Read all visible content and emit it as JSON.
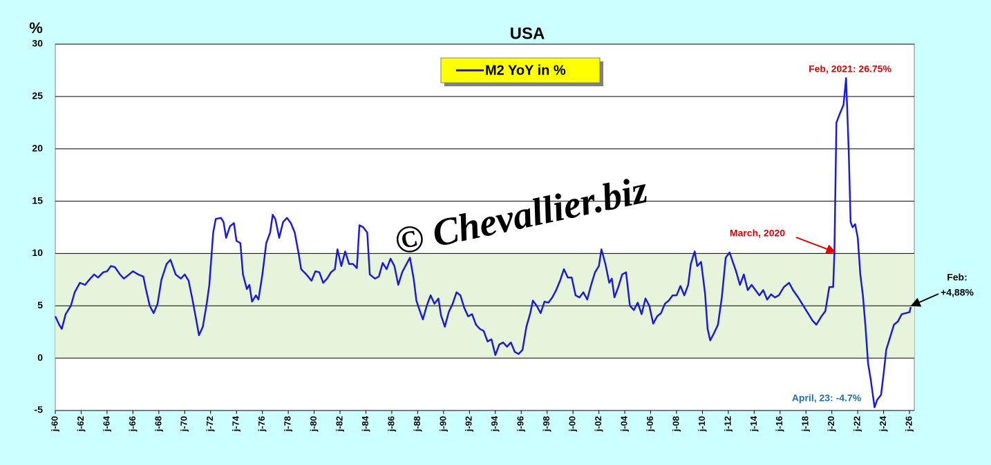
{
  "chart_data": {
    "type": "line",
    "title": "USA",
    "y_unit": "%",
    "watermark": "© Chevallier.biz",
    "x": [
      1960.0,
      1960.3,
      1960.5,
      1960.8,
      1961.2,
      1961.5,
      1961.9,
      1962.3,
      1962.7,
      1963.0,
      1963.3,
      1963.7,
      1964.0,
      1964.3,
      1964.6,
      1965.0,
      1965.3,
      1965.7,
      1966.0,
      1966.4,
      1966.8,
      1967.0,
      1967.3,
      1967.6,
      1967.9,
      1968.2,
      1968.6,
      1968.9,
      1969.3,
      1969.7,
      1970.0,
      1970.3,
      1970.6,
      1970.9,
      1971.1,
      1971.4,
      1971.7,
      1971.9,
      1972.2,
      1972.4,
      1972.8,
      1973.0,
      1973.2,
      1973.5,
      1973.8,
      1974.0,
      1974.3,
      1974.5,
      1974.8,
      1975.0,
      1975.2,
      1975.5,
      1975.7,
      1976.0,
      1976.3,
      1976.6,
      1976.8,
      1977.0,
      1977.3,
      1977.6,
      1977.9,
      1978.2,
      1978.5,
      1978.8,
      1979.0,
      1979.4,
      1979.8,
      1980.1,
      1980.4,
      1980.7,
      1981.0,
      1981.3,
      1981.6,
      1981.8,
      1982.1,
      1982.4,
      1982.7,
      1983.0,
      1983.3,
      1983.5,
      1983.8,
      1984.1,
      1984.3,
      1984.7,
      1985.0,
      1985.3,
      1985.6,
      1985.9,
      1986.2,
      1986.5,
      1986.8,
      1987.1,
      1987.4,
      1987.7,
      1987.9,
      1988.2,
      1988.4,
      1988.7,
      1989.0,
      1989.3,
      1989.6,
      1989.8,
      1990.1,
      1990.4,
      1990.7,
      1991.0,
      1991.3,
      1991.6,
      1991.9,
      1992.2,
      1992.5,
      1992.8,
      1993.1,
      1993.4,
      1993.7,
      1994.0,
      1994.3,
      1994.6,
      1994.9,
      1995.2,
      1995.5,
      1995.8,
      1996.1,
      1996.4,
      1996.7,
      1996.9,
      1997.2,
      1997.5,
      1997.8,
      1998.1,
      1998.4,
      1998.7,
      1999.0,
      1999.3,
      1999.6,
      1999.9,
      2000.2,
      2000.5,
      2000.8,
      2001.1,
      2001.4,
      2001.7,
      2002.0,
      2002.2,
      2002.5,
      2002.8,
      2003.0,
      2003.2,
      2003.5,
      2003.8,
      2004.1,
      2004.4,
      2004.7,
      2005.0,
      2005.3,
      2005.6,
      2005.9,
      2006.2,
      2006.5,
      2006.8,
      2007.1,
      2007.4,
      2007.7,
      2008.0,
      2008.3,
      2008.6,
      2008.9,
      2009.1,
      2009.4,
      2009.6,
      2009.9,
      2010.2,
      2010.4,
      2010.6,
      2010.9,
      2011.2,
      2011.5,
      2011.8,
      2012.1,
      2012.4,
      2012.6,
      2012.9,
      2013.2,
      2013.5,
      2013.8,
      2014.1,
      2014.4,
      2014.7,
      2015.0,
      2015.3,
      2015.6,
      2015.9,
      2016.3,
      2016.7,
      2017.0,
      2017.4,
      2017.8,
      2018.2,
      2018.5,
      2018.8,
      2019.2,
      2019.5,
      2019.8,
      2020.1,
      2020.2,
      2020.35,
      2020.6,
      2020.9,
      2021.1,
      2021.3,
      2021.45,
      2021.6,
      2021.8,
      2022.0,
      2022.2,
      2022.4,
      2022.6,
      2022.8,
      2023.0,
      2023.3,
      2023.5,
      2023.8,
      2024.0,
      2024.2,
      2024.5,
      2024.8,
      2025.1,
      2025.4,
      2025.7,
      2026.0,
      2026.1
    ],
    "series": [
      {
        "name": "M2 YoY in %",
        "color": "#1a1adc",
        "values": [
          4.0,
          3.2,
          2.8,
          4.2,
          5.0,
          6.3,
          7.2,
          7.0,
          7.6,
          8.0,
          7.7,
          8.2,
          8.3,
          8.8,
          8.7,
          8.0,
          7.6,
          8.0,
          8.3,
          8.0,
          7.8,
          6.6,
          5.0,
          4.3,
          5.2,
          7.5,
          9.0,
          9.4,
          8.0,
          7.6,
          8.0,
          7.4,
          5.6,
          3.6,
          2.2,
          3.0,
          5.2,
          7.0,
          12.0,
          13.3,
          13.4,
          13.0,
          11.5,
          12.6,
          12.9,
          11.2,
          11.0,
          8.0,
          6.6,
          7.0,
          5.4,
          6.0,
          5.6,
          8.0,
          11.0,
          12.0,
          13.7,
          13.3,
          11.5,
          13.0,
          13.4,
          12.9,
          12.0,
          10.0,
          8.5,
          8.0,
          7.4,
          8.3,
          8.2,
          7.2,
          7.6,
          8.2,
          8.5,
          10.4,
          8.8,
          10.2,
          9.0,
          9.0,
          8.6,
          12.7,
          12.5,
          12.0,
          8.0,
          7.6,
          7.8,
          9.1,
          8.5,
          9.5,
          8.8,
          7.0,
          8.2,
          8.9,
          9.6,
          7.5,
          5.5,
          4.4,
          3.7,
          5.0,
          6.0,
          5.2,
          5.7,
          4.1,
          3.0,
          4.4,
          5.2,
          6.3,
          6.0,
          4.8,
          4.0,
          4.2,
          3.2,
          2.8,
          2.6,
          1.6,
          1.8,
          0.3,
          1.3,
          1.5,
          1.1,
          1.5,
          0.6,
          0.4,
          0.8,
          3.0,
          4.3,
          5.5,
          5.0,
          4.3,
          5.4,
          5.3,
          5.8,
          6.5,
          7.4,
          8.5,
          7.7,
          7.7,
          6.0,
          5.8,
          6.3,
          5.6,
          7.0,
          8.2,
          8.8,
          10.4,
          9.0,
          7.2,
          7.6,
          5.8,
          6.8,
          8.0,
          8.2,
          5.0,
          4.6,
          5.3,
          4.2,
          5.7,
          5.0,
          3.3,
          4.0,
          4.3,
          5.2,
          5.5,
          6.0,
          6.0,
          6.9,
          6.0,
          7.0,
          9.0,
          10.2,
          8.8,
          9.2,
          6.2,
          2.8,
          1.7,
          2.4,
          3.2,
          5.8,
          9.6,
          10.1,
          9.0,
          8.3,
          7.0,
          8.0,
          6.5,
          7.0,
          6.5,
          6.0,
          6.5,
          5.6,
          6.1,
          5.8,
          6.0,
          6.8,
          7.2,
          6.5,
          5.8,
          5.0,
          4.2,
          3.6,
          3.2,
          4.0,
          4.5,
          6.8,
          6.8,
          10.0,
          22.5,
          23.3,
          24.2,
          26.75,
          20.0,
          13.0,
          12.5,
          12.8,
          11.5,
          8.0,
          6.0,
          3.0,
          -0.5,
          -2.0,
          -4.7,
          -4.0,
          -3.5,
          -1.5,
          0.8,
          2.0,
          3.2,
          3.5,
          4.2,
          4.3,
          4.4,
          4.88
        ]
      }
    ],
    "xlim": [
      1960,
      2026.37
    ],
    "xticks": [
      {
        "value": 1960,
        "label": "j-60"
      },
      {
        "value": 1962,
        "label": "j-62"
      },
      {
        "value": 1964,
        "label": "j-64"
      },
      {
        "value": 1966,
        "label": "j-66"
      },
      {
        "value": 1968,
        "label": "j-68"
      },
      {
        "value": 1970,
        "label": "j-70"
      },
      {
        "value": 1972,
        "label": "j-72"
      },
      {
        "value": 1974,
        "label": "j-74"
      },
      {
        "value": 1976,
        "label": "j-76"
      },
      {
        "value": 1978,
        "label": "j-78"
      },
      {
        "value": 1980,
        "label": "j-80"
      },
      {
        "value": 1982,
        "label": "j-82"
      },
      {
        "value": 1984,
        "label": "j-84"
      },
      {
        "value": 1986,
        "label": "j-86"
      },
      {
        "value": 1988,
        "label": "j-88"
      },
      {
        "value": 1990,
        "label": "j-90"
      },
      {
        "value": 1992,
        "label": "j-92"
      },
      {
        "value": 1994,
        "label": "j-94"
      },
      {
        "value": 1996,
        "label": "j-96"
      },
      {
        "value": 1998,
        "label": "j-98"
      },
      {
        "value": 2000,
        "label": "j-00"
      },
      {
        "value": 2002,
        "label": "j-02"
      },
      {
        "value": 2004,
        "label": "j-04"
      },
      {
        "value": 2006,
        "label": "j-06"
      },
      {
        "value": 2008,
        "label": "j-08"
      },
      {
        "value": 2010,
        "label": "j-10"
      },
      {
        "value": 2012,
        "label": "j-12"
      },
      {
        "value": 2014,
        "label": "j-14"
      },
      {
        "value": 2016,
        "label": "j-16"
      },
      {
        "value": 2018,
        "label": "j-18"
      },
      {
        "value": 2020,
        "label": "j-20"
      },
      {
        "value": 2022,
        "label": "j-22"
      },
      {
        "value": 2024,
        "label": "j-24"
      },
      {
        "value": 2026,
        "label": "j-26"
      }
    ],
    "ylim": [
      -5,
      30
    ],
    "yticks": [
      -5,
      0,
      5,
      10,
      15,
      20,
      25,
      30
    ],
    "grid": true,
    "shaded_range": [
      0,
      10
    ],
    "annotations": [
      {
        "text": [
          "Feb, 2021: 26.75%"
        ],
        "color": "#e00000"
      },
      {
        "text": [
          "March, 2020"
        ],
        "color": "#e00000"
      },
      {
        "text": [
          "April, 23: -4.7%"
        ],
        "color": "#1f6fb4"
      },
      {
        "text": [
          "Feb:",
          "+4,88%"
        ],
        "color": "#000000"
      }
    ]
  }
}
